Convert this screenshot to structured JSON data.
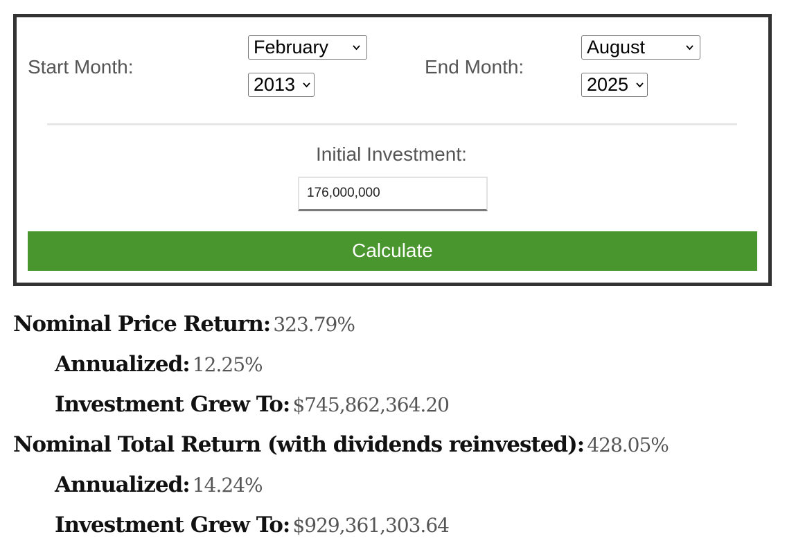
{
  "form": {
    "start_label": "Start Month:",
    "start_month": "February",
    "start_year": "2013",
    "end_label": "End Month:",
    "end_month": "August",
    "end_year": "2025",
    "investment_label": "Initial Investment:",
    "investment_value": "176,000,000",
    "calculate_label": "Calculate"
  },
  "results": {
    "price_return_label": "Nominal Price Return:",
    "price_return_value": "323.79%",
    "price_annualized_label": "Annualized:",
    "price_annualized_value": "12.25%",
    "price_grew_label": "Investment Grew To:",
    "price_grew_value": "$745,862,364.20",
    "total_return_label": "Nominal Total Return (with dividends reinvested):",
    "total_return_value": "428.05%",
    "total_annualized_label": "Annualized:",
    "total_annualized_value": "14.24%",
    "total_grew_label": "Investment Grew To:",
    "total_grew_value": "$929,361,303.64"
  },
  "colors": {
    "button": "#4a962e",
    "border": "#333333",
    "label": "#555555"
  },
  "icons": {
    "select_arrow": "chevron-down-icon"
  }
}
